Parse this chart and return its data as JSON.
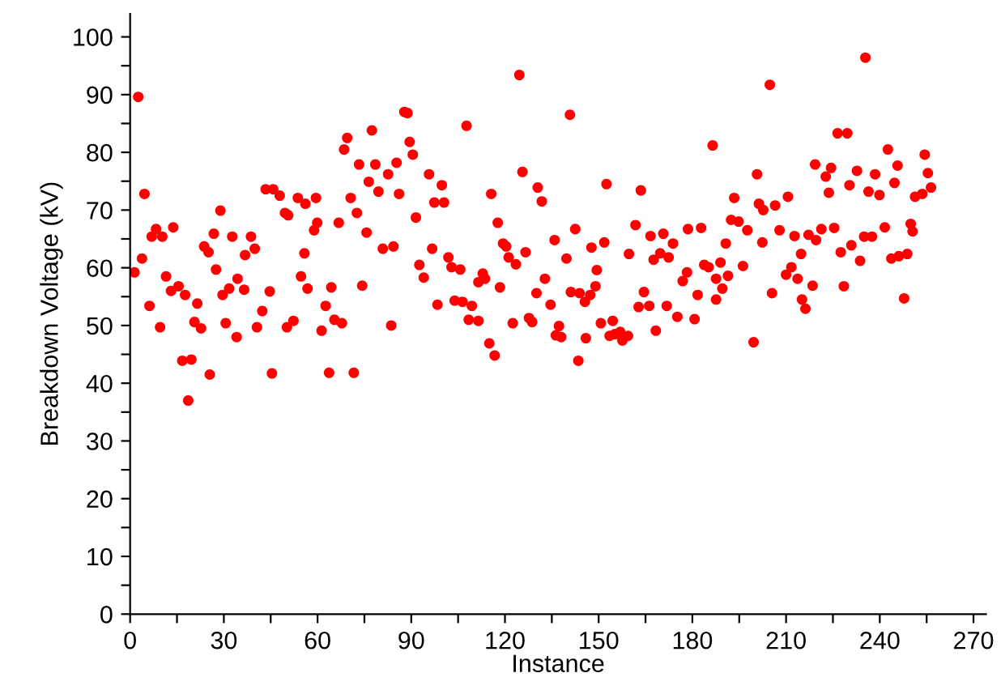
{
  "chart_data": {
    "type": "scatter",
    "xlabel": "Instance",
    "ylabel": "Breakdown Voltage (kV)",
    "xlim": [
      0,
      274
    ],
    "ylim": [
      0,
      104
    ],
    "xticks": [
      0,
      {
        "value": 15,
        "label": null
      },
      30,
      {
        "value": 45,
        "label": null
      },
      60,
      {
        "value": 75,
        "label": null
      },
      90,
      {
        "value": 105,
        "label": null
      },
      120,
      {
        "value": 135,
        "label": null
      },
      150,
      {
        "value": 165,
        "label": null
      },
      180,
      {
        "value": 195,
        "label": null
      },
      210,
      {
        "value": 225,
        "label": null
      },
      240,
      {
        "value": 255,
        "label": null
      },
      270
    ],
    "yticks": [
      0,
      {
        "value": 5,
        "label": null
      },
      10,
      {
        "value": 15,
        "label": null
      },
      20,
      {
        "value": 25,
        "label": null
      },
      30,
      {
        "value": 35,
        "label": null
      },
      40,
      {
        "value": 45,
        "label": null
      },
      50,
      {
        "value": 55,
        "label": null
      },
      60,
      {
        "value": 65,
        "label": null
      },
      70,
      {
        "value": 75,
        "label": null
      },
      80,
      {
        "value": 85,
        "label": null
      },
      90,
      {
        "value": 95,
        "label": null
      },
      100
    ],
    "grid": false,
    "legend": false,
    "marker": "circle",
    "series": [
      {
        "color": "#ff0000",
        "x": [
          2.6,
          4.6,
          1.4,
          3.8,
          6.2,
          9.6,
          8.3,
          6.9,
          10.3,
          13.8,
          11.5,
          13.1,
          15.5,
          17.6,
          21.5,
          16.7,
          19.6,
          18.6,
          20.6,
          22.7,
          25.5,
          23.7,
          25.1,
          26.8,
          27.5,
          28.9,
          29.6,
          31.7,
          30.6,
          32.7,
          34.4,
          36.5,
          34.1,
          38.7,
          39.9,
          36.8,
          40.6,
          42.3,
          44.7,
          45.4,
          43.4,
          45.8,
          47.9,
          49.6,
          50.6,
          53.7,
          56.1,
          59.5,
          59.9,
          58.9,
          55.8,
          54.7,
          56.8,
          52.3,
          50.2,
          61.3,
          62.6,
          64.4,
          65.4,
          67.8,
          63.7,
          71.6,
          66.8,
          70.6,
          72.6,
          75.7,
          74.3,
          68.5,
          69.5,
          77.4,
          73.3,
          78.5,
          76.4,
          79.5,
          82.6,
          85.3,
          86.1,
          80.9,
          84.3,
          83.6,
          87.8,
          124.6,
          88.8,
          107.7,
          140.8,
          89.5,
          90.5,
          95.7,
          99.8,
          97.4,
          100.5,
          91.5,
          96.7,
          92.6,
          94.0,
          101.9,
          102.9,
          105.7,
          112.9,
          111.5,
          113.6,
          98.4,
          103.9,
          106.4,
          109.4,
          108.4,
          111.5,
          118.4,
          115.0,
          116.7,
          115.6,
          117.7,
          119.4,
          121.2,
          123.5,
          120.4,
          125.6,
          130.5,
          131.8,
          126.6,
          130.1,
          132.8,
          134.6,
          122.5,
          127.7,
          128.7,
          135.9,
          139.7,
          142.5,
          137.3,
          138.0,
          136.3,
          143.5,
          141.1,
          143.9,
          145.6,
          147.3,
          149.0,
          147.7,
          149.4,
          145.9,
          151.8,
          152.5,
          150.7,
          154.5,
          155.2,
          156.9,
          159.4,
          157.6,
          153.5,
          159.7,
          161.8,
          163.5,
          164.5,
          162.8,
          166.2,
          168.3,
          166.6,
          167.6,
          169.7,
          170.7,
          172.4,
          173.8,
          171.8,
          235.4,
          204.8,
          186.5,
          226.5,
          229.6,
          200.7,
          219.3,
          224.4,
          222.7,
          232.7,
          238.5,
          242.6,
          245.7,
          254.4,
          255.4,
          256.4,
          253.6,
          251.3,
          244.7,
          230.3,
          223.7,
          236.4,
          239.9,
          210.6,
          206.5,
          202.7,
          201.3,
          193.4,
          192.4,
          194.8,
          197.6,
          202.4,
          207.9,
          212.7,
          217.2,
          219.6,
          221.3,
          225.4,
          241.6,
          249.9,
          250.5,
          235.0,
          237.5,
          230.9,
          227.5,
          233.7,
          243.7,
          246.1,
          248.8,
          247.8,
          228.5,
          214.8,
          211.7,
          210.0,
          213.7,
          218.5,
          215.1,
          216.2,
          205.5,
          199.6,
          196.2,
          190.7,
          191.4,
          189.0,
          183.8,
          185.2,
          187.6,
          189.6,
          187.6,
          181.7,
          178.3,
          176.9,
          178.6,
          182.8,
          175.2,
          180.7
        ],
        "values": [
          89.6,
          72.8,
          59.2,
          61.6,
          53.4,
          49.7,
          66.7,
          65.4,
          65.4,
          67.0,
          58.5,
          56.0,
          56.8,
          55.3,
          53.8,
          43.9,
          44.1,
          37.0,
          50.6,
          49.5,
          41.5,
          63.7,
          62.7,
          65.9,
          59.7,
          69.9,
          55.3,
          56.4,
          50.4,
          65.4,
          58.1,
          56.2,
          48.0,
          65.4,
          63.3,
          62.2,
          49.7,
          52.5,
          55.9,
          41.7,
          73.6,
          73.6,
          72.5,
          69.5,
          69.1,
          72.1,
          71.1,
          72.1,
          67.8,
          66.5,
          62.5,
          58.5,
          56.4,
          50.8,
          49.7,
          49.1,
          53.4,
          56.6,
          51.0,
          50.4,
          41.8,
          41.8,
          67.8,
          72.1,
          69.5,
          66.1,
          56.9,
          80.5,
          82.5,
          83.8,
          77.9,
          77.9,
          74.9,
          73.2,
          76.2,
          78.2,
          72.8,
          63.3,
          63.7,
          50.0,
          87.0,
          93.4,
          86.8,
          84.6,
          86.5,
          81.8,
          79.6,
          76.2,
          74.3,
          71.3,
          71.3,
          68.7,
          63.3,
          60.5,
          58.3,
          61.8,
          60.1,
          59.7,
          59.0,
          57.5,
          58.1,
          53.6,
          54.3,
          54.1,
          53.4,
          51.0,
          50.8,
          56.6,
          46.9,
          44.8,
          72.8,
          67.8,
          64.2,
          61.8,
          60.6,
          63.7,
          76.6,
          73.9,
          71.5,
          62.7,
          55.6,
          58.1,
          53.6,
          50.4,
          51.3,
          50.6,
          64.8,
          61.6,
          66.7,
          49.9,
          48.0,
          48.3,
          43.9,
          55.8,
          55.6,
          54.1,
          55.3,
          56.8,
          63.5,
          59.6,
          47.8,
          64.4,
          74.5,
          50.4,
          50.8,
          48.5,
          48.9,
          48.2,
          47.4,
          48.2,
          62.4,
          67.4,
          73.4,
          55.8,
          53.2,
          53.4,
          49.1,
          65.5,
          61.4,
          62.5,
          65.9,
          61.8,
          64.2,
          53.4,
          96.4,
          91.7,
          81.2,
          83.3,
          83.3,
          76.2,
          77.9,
          77.3,
          75.8,
          76.8,
          76.2,
          80.5,
          77.7,
          79.6,
          76.4,
          73.9,
          72.8,
          72.3,
          74.7,
          74.3,
          73.0,
          73.2,
          72.6,
          72.3,
          70.8,
          70.0,
          71.1,
          72.1,
          68.3,
          68.0,
          66.5,
          64.4,
          66.5,
          65.5,
          65.7,
          64.8,
          66.7,
          66.9,
          67.0,
          67.6,
          66.3,
          65.4,
          65.4,
          63.9,
          62.7,
          61.2,
          61.6,
          62.0,
          62.4,
          54.7,
          56.8,
          62.4,
          60.1,
          58.8,
          58.1,
          56.9,
          54.5,
          52.9,
          55.6,
          47.1,
          60.3,
          64.2,
          58.6,
          60.9,
          60.5,
          60.1,
          58.1,
          56.4,
          54.5,
          55.3,
          59.2,
          57.7,
          66.7,
          66.9,
          51.5,
          51.1
        ]
      }
    ]
  }
}
